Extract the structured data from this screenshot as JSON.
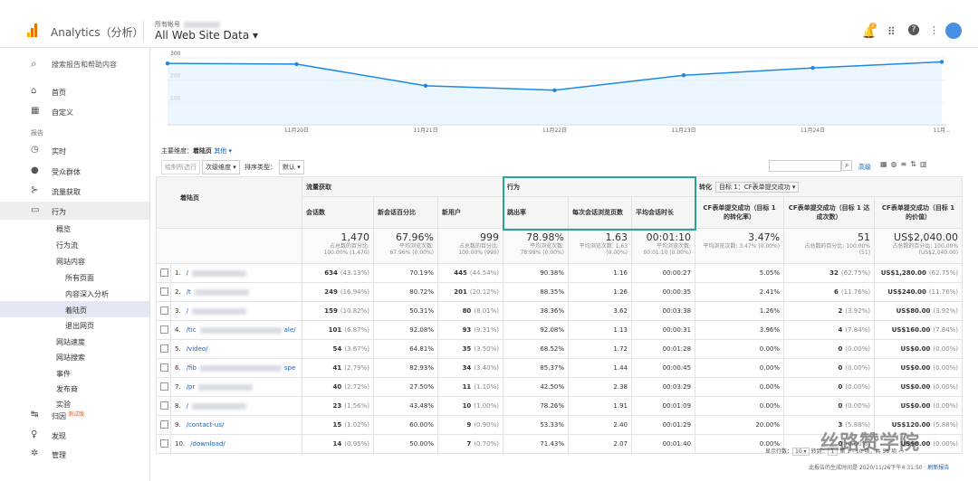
{
  "header": {
    "product": "Analytics（分析）",
    "account": "所有帐号",
    "property": "All Web Site Data ▾",
    "badge": "2"
  },
  "sidebar": {
    "search": "搜索报告和帮助内容",
    "items": [
      {
        "label": "首页",
        "level": 0,
        "icon": "⌂"
      },
      {
        "label": "自定义",
        "level": 0,
        "icon": "▦"
      },
      {
        "label": "报告",
        "level": -1
      },
      {
        "label": "实时",
        "level": 0,
        "icon": "◷"
      },
      {
        "label": "受众群体",
        "level": 0,
        "icon": "●"
      },
      {
        "label": "流量获取",
        "level": 0,
        "icon": "⊱"
      },
      {
        "label": "行为",
        "level": 0,
        "icon": "▭"
      },
      {
        "label": "概览",
        "level": 1
      },
      {
        "label": "行为流",
        "level": 1
      },
      {
        "label": "网站内容",
        "level": 1
      },
      {
        "label": "所有页面",
        "level": 2
      },
      {
        "label": "内容深入分析",
        "level": 2
      },
      {
        "label": "着陆页",
        "level": 2
      },
      {
        "label": "退出网页",
        "level": 2
      },
      {
        "label": "网站速度",
        "level": 1
      },
      {
        "label": "网站搜索",
        "level": 1
      },
      {
        "label": "事件",
        "level": 1
      },
      {
        "label": "发布商",
        "level": 1
      },
      {
        "label": "实验",
        "level": 1
      },
      {
        "label": "归因",
        "level": 0,
        "icon": "↹",
        "badge": "测试版"
      },
      {
        "label": "发现",
        "level": 0,
        "icon": "♀"
      },
      {
        "label": "管理",
        "level": 0,
        "icon": "✲"
      }
    ]
  },
  "chart": {
    "type": "line",
    "categories": [
      null,
      "11月20日",
      "11月21日",
      "11月22日",
      "11月23日",
      "11月24日",
      "11月..."
    ],
    "values": [
      275,
      272,
      175,
      155,
      222,
      255,
      282
    ],
    "ylim": [
      0,
      330
    ],
    "yticks": [
      100,
      200,
      300
    ],
    "color": "#1e88e5"
  },
  "toolbar": {
    "primary_label": "主要维度：",
    "primary": "着陆页",
    "other": "其他 ▾",
    "plot": "绘制所选行",
    "secondary": "次级维度 ▾",
    "sort_label": "排序类型：",
    "sort": "默认 ▾",
    "advanced": "高级"
  },
  "table": {
    "groups": [
      "流量获取",
      "行为",
      "转化"
    ],
    "goal": "目标 1：CF表单提交成功 ▾",
    "columns": [
      "着陆页",
      "会话数",
      "新会话百分比",
      "新用户",
      "跳出率",
      "每次会话浏览页数",
      "平均会话时长",
      "CF表单提交成功（目标 1 的转化率）",
      "CF表单提交成功（目标 1 达成次数）",
      "CF表单提交成功（目标 1 的价值）"
    ],
    "totals": [
      [
        "1,470",
        "占总数的百分比:",
        "100.00% (1,470)"
      ],
      [
        "67.96%",
        "平均浏览次数:",
        "67.96% (0.00%)"
      ],
      [
        "999",
        "占总数的百分比:",
        "100.00% (999)"
      ],
      [
        "78.98%",
        "平均浏览次数:",
        "78.98% (0.00%)"
      ],
      [
        "1.63",
        "平均浏览次数: 1.63",
        "(0.00%)"
      ],
      [
        "00:01:10",
        "平均浏览次数:",
        "00:01:10 (0.00%)"
      ],
      [
        "3.47%",
        "平均浏览次数: 3.47% (0.00%)"
      ],
      [
        "51",
        "占总数的百分比: 100.00%",
        "(51)"
      ],
      [
        "US$2,040.00",
        "占总数的百分比: 100.00%",
        "(US$2,040.00)"
      ]
    ],
    "rows": [
      {
        "index": "1.",
        "page": "/",
        "cells": [
          [
            "634",
            "(43.13%)"
          ],
          [
            "70.19%"
          ],
          [
            "445",
            "(44.54%)"
          ],
          [
            "90.38%"
          ],
          [
            "1.16"
          ],
          [
            "00:00:27"
          ],
          [
            "5.05%"
          ],
          [
            "32",
            "(62.75%)"
          ],
          [
            "US$1,280.00",
            "(62.75%)"
          ]
        ]
      },
      {
        "index": "2.",
        "page": "/t",
        "cells": [
          [
            "249",
            "(16.94%)"
          ],
          [
            "80.72%"
          ],
          [
            "201",
            "(20.12%)"
          ],
          [
            "88.35%"
          ],
          [
            "1.26"
          ],
          [
            "00:00:35"
          ],
          [
            "2.41%"
          ],
          [
            "6",
            "(11.76%)"
          ],
          [
            "US$240.00",
            "(11.76%)"
          ]
        ]
      },
      {
        "index": "3.",
        "page": "/",
        "cells": [
          [
            "159",
            "(10.82%)"
          ],
          [
            "50.31%"
          ],
          [
            "80",
            "(8.01%)"
          ],
          [
            "38.36%"
          ],
          [
            "3.62"
          ],
          [
            "00:03:38"
          ],
          [
            "1.26%"
          ],
          [
            "2",
            "(3.92%)"
          ],
          [
            "US$80.00",
            "(3.92%)"
          ]
        ]
      },
      {
        "index": "4.",
        "page": "/tic",
        "page2": "ale/",
        "cells": [
          [
            "101",
            "(6.87%)"
          ],
          [
            "92.08%"
          ],
          [
            "93",
            "(9.31%)"
          ],
          [
            "92.08%"
          ],
          [
            "1.13"
          ],
          [
            "00:00:31"
          ],
          [
            "3.96%"
          ],
          [
            "4",
            "(7.84%)"
          ],
          [
            "US$160.00",
            "(7.84%)"
          ]
        ]
      },
      {
        "index": "5.",
        "page": "/video/",
        "cells": [
          [
            "54",
            "(3.67%)"
          ],
          [
            "64.81%"
          ],
          [
            "35",
            "(3.50%)"
          ],
          [
            "68.52%"
          ],
          [
            "1.72"
          ],
          [
            "00:01:28"
          ],
          [
            "0.00%"
          ],
          [
            "0",
            "(0.00%)"
          ],
          [
            "US$0.00",
            "(0.00%)"
          ]
        ]
      },
      {
        "index": "6.",
        "page": "/fib",
        "page2": "spe",
        "cells": [
          [
            "41",
            "(2.79%)"
          ],
          [
            "82.93%"
          ],
          [
            "34",
            "(3.40%)"
          ],
          [
            "85.37%"
          ],
          [
            "1.44"
          ],
          [
            "00:00:45"
          ],
          [
            "0.00%"
          ],
          [
            "0",
            "(0.00%)"
          ],
          [
            "US$0.00",
            "(0.00%)"
          ]
        ]
      },
      {
        "index": "7.",
        "page": "/pr",
        "cells": [
          [
            "40",
            "(2.72%)"
          ],
          [
            "27.50%"
          ],
          [
            "11",
            "(1.10%)"
          ],
          [
            "42.50%"
          ],
          [
            "2.38"
          ],
          [
            "00:03:29"
          ],
          [
            "0.00%"
          ],
          [
            "0",
            "(0.00%)"
          ],
          [
            "US$0.00",
            "(0.00%)"
          ]
        ]
      },
      {
        "index": "8.",
        "page": "/",
        "cells": [
          [
            "23",
            "(1.56%)"
          ],
          [
            "43.48%"
          ],
          [
            "10",
            "(1.00%)"
          ],
          [
            "78.26%"
          ],
          [
            "1.91"
          ],
          [
            "00:01:09"
          ],
          [
            "0.00%"
          ],
          [
            "0",
            "(0.00%)"
          ],
          [
            "US$0.00",
            "(0.00%)"
          ]
        ]
      },
      {
        "index": "9.",
        "page": "/contact-us/",
        "cells": [
          [
            "15",
            "(1.02%)"
          ],
          [
            "60.00%"
          ],
          [
            "9",
            "(0.90%)"
          ],
          [
            "53.33%"
          ],
          [
            "2.40"
          ],
          [
            "00:01:29"
          ],
          [
            "20.00%"
          ],
          [
            "3",
            "(5.88%)"
          ],
          [
            "US$120.00",
            "(5.88%)"
          ]
        ]
      },
      {
        "index": "10.",
        "page": "/download/",
        "cells": [
          [
            "14",
            "(0.95%)"
          ],
          [
            "50.00%"
          ],
          [
            "7",
            "(0.70%)"
          ],
          [
            "71.43%"
          ],
          [
            "2.07"
          ],
          [
            "00:01:40"
          ],
          [
            "0.00%"
          ],
          [
            "0",
            "(0.00%)"
          ],
          [
            "US$0.00",
            "(0.00%)"
          ]
        ]
      }
    ]
  },
  "footer": {
    "rows_label": "显示行数：",
    "rows_value": "10 ▾",
    "goto_label": "转到：",
    "goto_value": "1",
    "range": "第 1 - 10 项，共 56 项",
    "generated": "此报告的生成时间是 2020/11/26下午4:31:50 · ",
    "refresh": "刷新报告"
  },
  "watermark": "丝路赞学院"
}
